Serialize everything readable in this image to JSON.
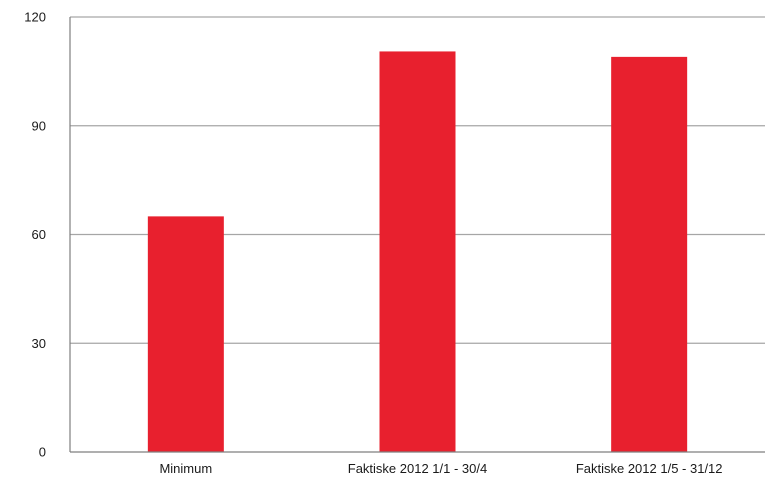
{
  "chart_data": {
    "type": "bar",
    "categories": [
      "Minimum",
      "Faktiske 2012 1/1 - 30/4",
      "Faktiske 2012 1/5 - 31/12"
    ],
    "values": [
      65,
      110.5,
      109
    ],
    "ylim": [
      0,
      120
    ],
    "yticks": [
      "0",
      "30",
      "60",
      "90",
      "120"
    ],
    "grid": true,
    "legend": "none",
    "colors": {
      "bar": "#e8202e",
      "grid": "#a6a6a6",
      "axis": "#7f7f7f"
    }
  }
}
